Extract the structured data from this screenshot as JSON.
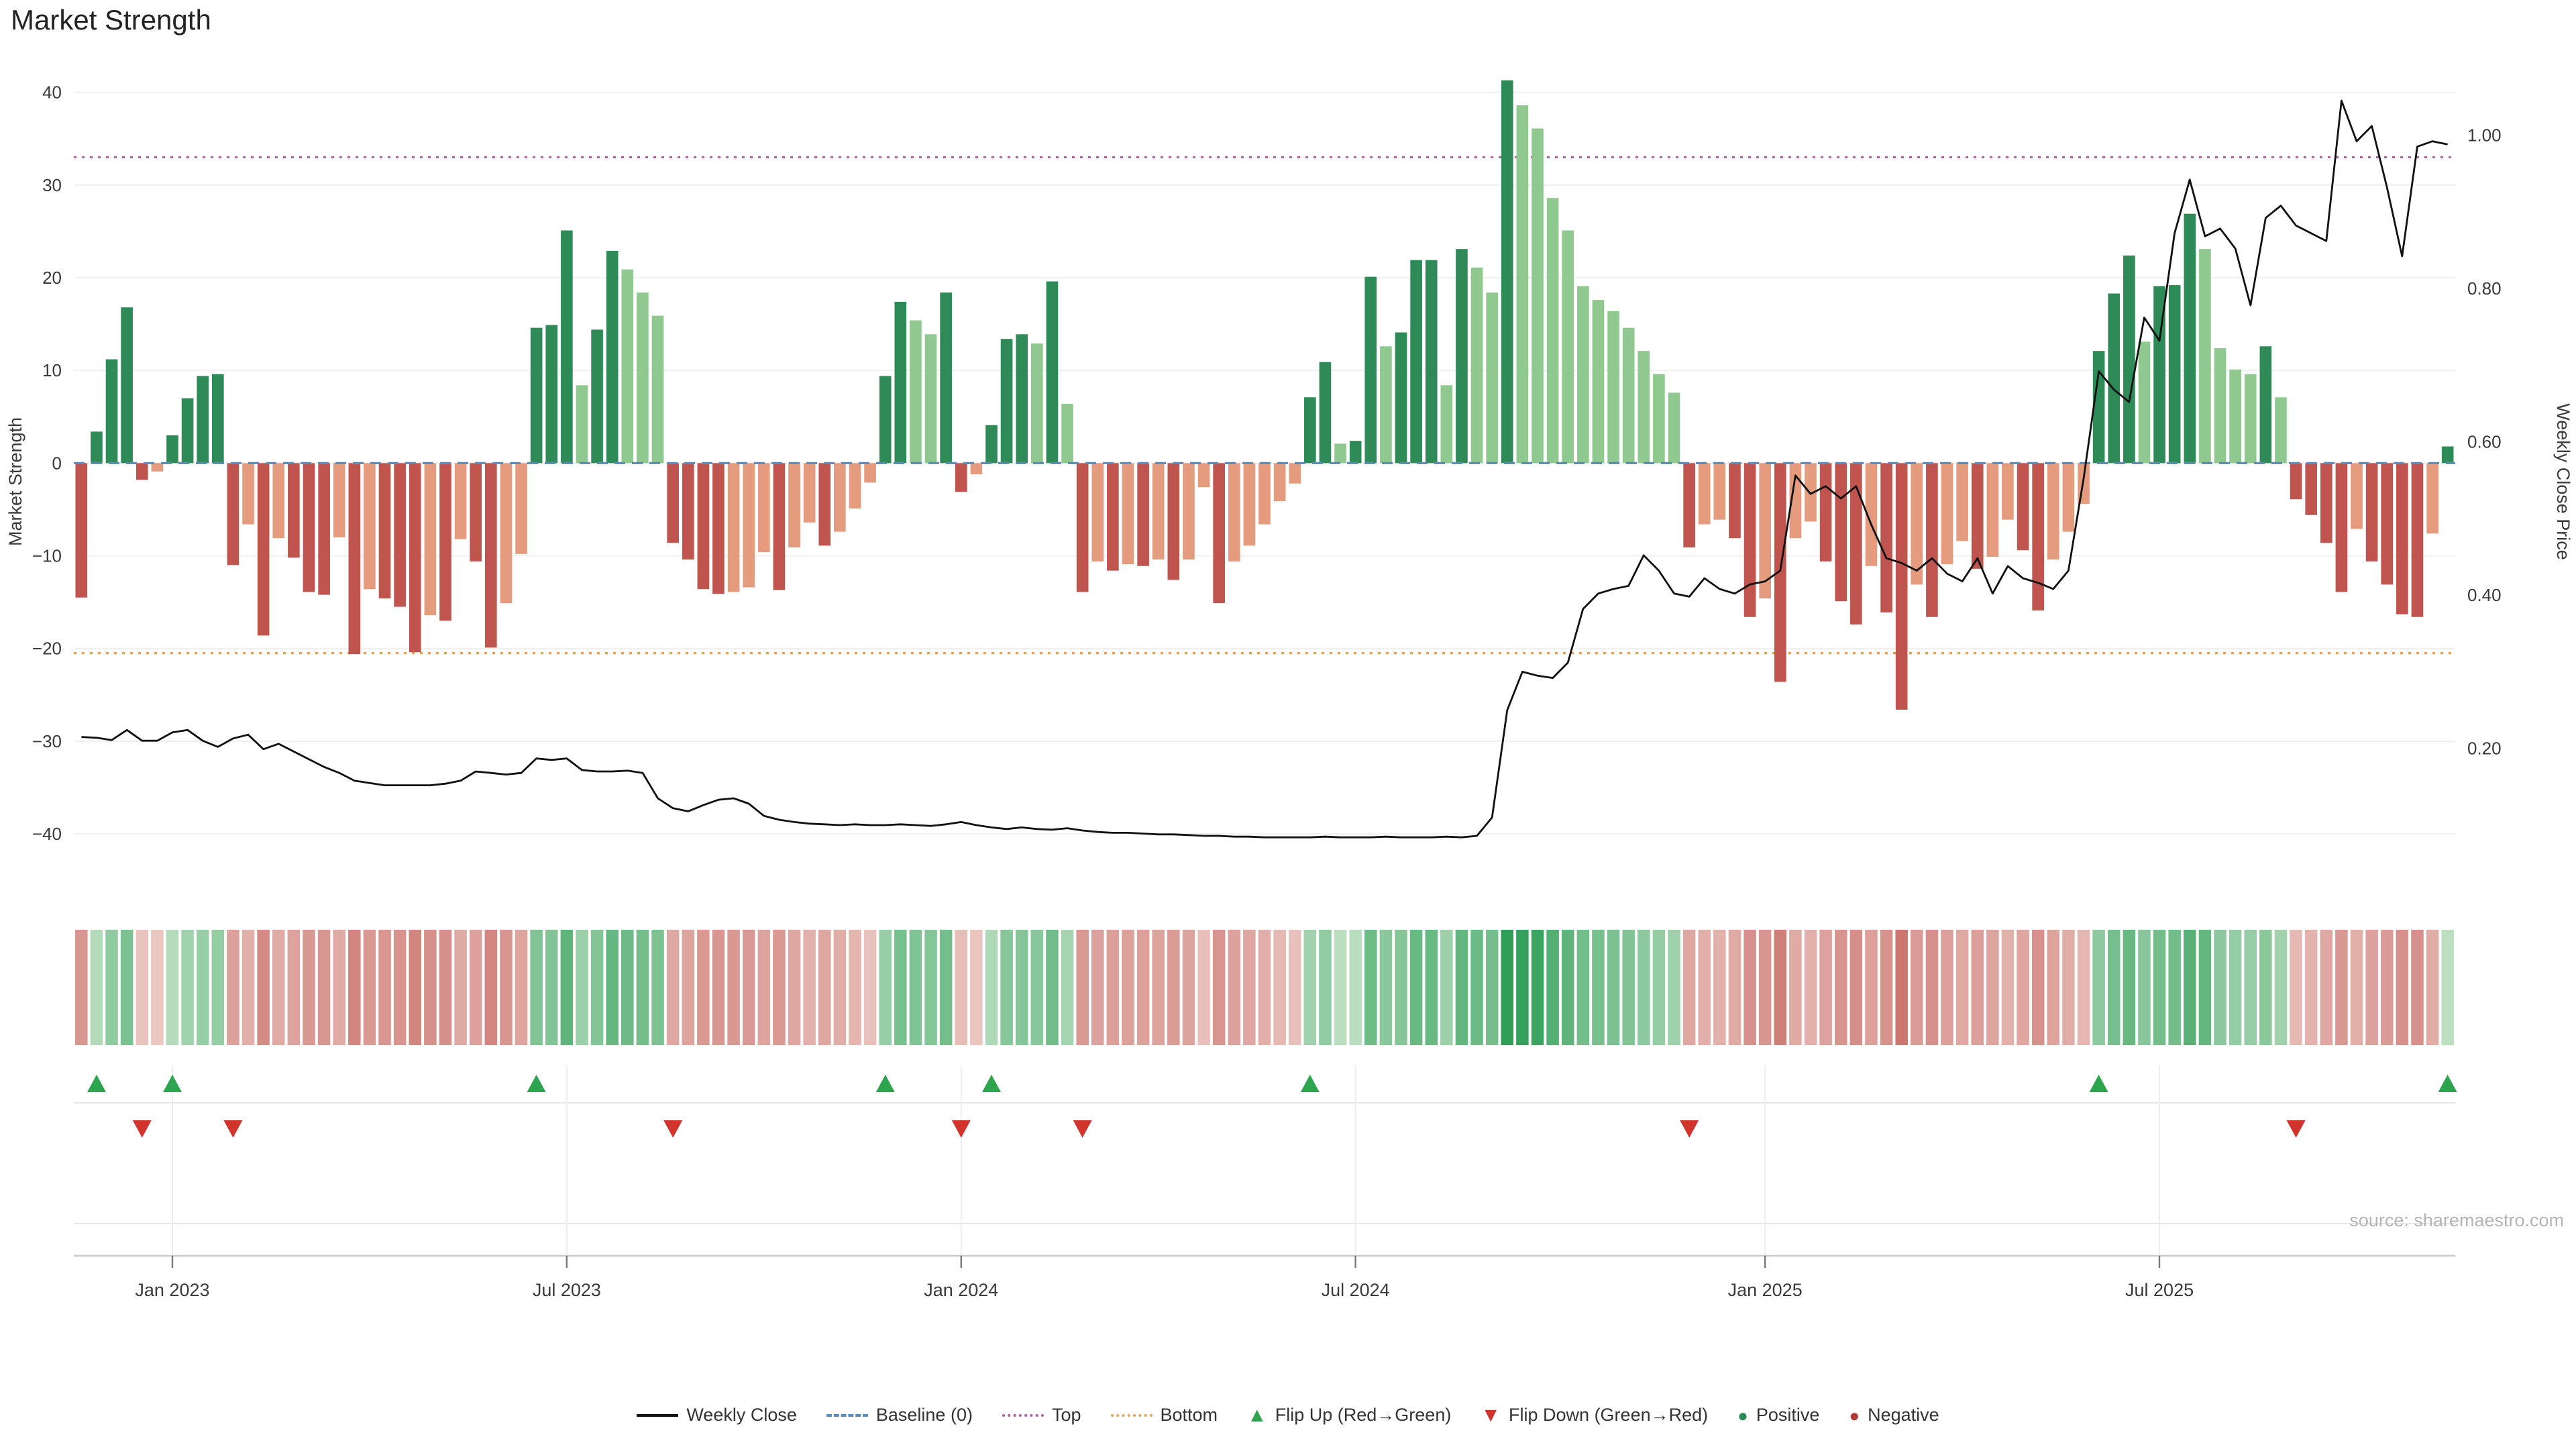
{
  "source_credit": "source: sharemaestro.com",
  "colors": {
    "positive_dark": "#2e8b57",
    "positive_light": "#8fc98f",
    "negative_dark": "#c0544e",
    "negative_light": "#e59b7e",
    "baseline": "#5b8db8",
    "top": "#b35fa3",
    "bottom": "#e8a356",
    "price": "#111111",
    "flip_up": "#2da44e",
    "flip_down": "#d0342c",
    "heat_pos_dark": "#2f9e57",
    "heat_pos_light": "#e6f2e2",
    "heat_neg_dark": "#c0544e",
    "heat_neg_light": "#f6e4df",
    "grid": "#f0f0f0",
    "axis_text": "#3a3a3a"
  },
  "chart_data": {
    "type": "bar+line+heatmap",
    "title": "Market Strength",
    "n_weeks": 157,
    "x_unit": "week_index",
    "axes": {
      "left_label": "Market Strength",
      "right_label": "Weekly Close Price",
      "left_ticks": [
        40,
        30,
        20,
        10,
        0,
        -10,
        -20,
        -30,
        -40
      ],
      "right_ticks": [
        1.0,
        0.8,
        0.6,
        0.4,
        0.2
      ],
      "left_min": -46,
      "left_max": 42,
      "right_min": 0.016,
      "right_max": 1.08,
      "x_tick_labels": [
        "Jan 2023",
        "Jul 2023",
        "Jan 2024",
        "Jul 2024",
        "Jan 2025",
        "Jul 2025"
      ],
      "x_tick_weeks": [
        6,
        32,
        58,
        84,
        111,
        137
      ]
    },
    "reference_lines": {
      "baseline": 0,
      "top": 33,
      "bottom": -20.5
    },
    "series": [
      {
        "name": "Market Strength",
        "type": "bar",
        "axis": "left",
        "values": [
          -14.5,
          3.4,
          11.2,
          16.8,
          -1.8,
          -0.9,
          3.0,
          7.0,
          9.4,
          9.6,
          -11.0,
          -6.6,
          -18.6,
          -8.1,
          -10.2,
          -13.9,
          -14.2,
          -8.0,
          -20.6,
          -13.6,
          -14.6,
          -15.5,
          -20.4,
          -16.4,
          -17.0,
          -8.2,
          -10.6,
          -19.9,
          -15.1,
          -9.8,
          14.6,
          14.9,
          25.1,
          8.4,
          14.4,
          22.9,
          20.9,
          18.4,
          15.9,
          -8.6,
          -10.4,
          -13.6,
          -14.1,
          -13.9,
          -13.4,
          -9.6,
          -13.7,
          -9.1,
          -6.4,
          -8.9,
          -7.4,
          -4.9,
          -2.1,
          9.4,
          17.4,
          15.4,
          13.9,
          18.4,
          -3.1,
          -1.2,
          4.1,
          13.4,
          13.9,
          12.9,
          19.6,
          6.4,
          -13.9,
          -10.6,
          -11.6,
          -10.9,
          -11.1,
          -10.4,
          -12.6,
          -10.4,
          -2.6,
          -15.1,
          -10.6,
          -8.9,
          -6.6,
          -4.1,
          -2.2,
          7.1,
          10.9,
          2.1,
          2.4,
          20.1,
          12.6,
          14.1,
          21.9,
          21.9,
          8.4,
          23.1,
          21.1,
          18.4,
          41.3,
          38.6,
          36.1,
          28.6,
          25.1,
          19.1,
          17.6,
          16.4,
          14.6,
          12.1,
          9.6,
          7.6,
          -9.1,
          -6.6,
          -6.1,
          -8.1,
          -16.6,
          -14.6,
          -23.6,
          -8.1,
          -6.3,
          -10.6,
          -14.9,
          -17.4,
          -11.1,
          -16.1,
          -26.6,
          -13.1,
          -16.6,
          -10.9,
          -8.4,
          -11.4,
          -10.1,
          -6.1,
          -9.4,
          -15.9,
          -10.4,
          -7.4,
          -4.4,
          12.1,
          18.3,
          22.4,
          13.1,
          19.1,
          19.2,
          26.9,
          23.1,
          12.4,
          10.1,
          9.6,
          12.6,
          7.1,
          -3.9,
          -5.6,
          -8.6,
          -13.9,
          -7.1,
          -10.6,
          -13.1,
          -16.3,
          -16.6,
          -7.6,
          1.8
        ]
      },
      {
        "name": "Weekly Close",
        "type": "line",
        "axis": "right",
        "values": [
          0.215,
          0.214,
          0.211,
          0.224,
          0.21,
          0.21,
          0.221,
          0.224,
          0.21,
          0.202,
          0.213,
          0.218,
          0.199,
          0.206,
          0.196,
          0.186,
          0.176,
          0.168,
          0.158,
          0.155,
          0.152,
          0.152,
          0.152,
          0.152,
          0.154,
          0.158,
          0.17,
          0.168,
          0.166,
          0.168,
          0.187,
          0.185,
          0.187,
          0.172,
          0.17,
          0.17,
          0.171,
          0.168,
          0.135,
          0.122,
          0.118,
          0.126,
          0.133,
          0.135,
          0.128,
          0.112,
          0.107,
          0.104,
          0.102,
          0.101,
          0.1,
          0.101,
          0.1,
          0.1,
          0.101,
          0.1,
          0.099,
          0.101,
          0.104,
          0.1,
          0.097,
          0.095,
          0.097,
          0.095,
          0.094,
          0.096,
          0.093,
          0.091,
          0.09,
          0.09,
          0.089,
          0.088,
          0.088,
          0.087,
          0.086,
          0.086,
          0.085,
          0.085,
          0.084,
          0.084,
          0.084,
          0.084,
          0.085,
          0.084,
          0.084,
          0.084,
          0.085,
          0.084,
          0.084,
          0.084,
          0.085,
          0.084,
          0.086,
          0.11,
          0.25,
          0.3,
          0.295,
          0.292,
          0.312,
          0.382,
          0.402,
          0.408,
          0.412,
          0.452,
          0.432,
          0.402,
          0.398,
          0.422,
          0.408,
          0.402,
          0.414,
          0.418,
          0.432,
          0.556,
          0.532,
          0.542,
          0.526,
          0.542,
          0.492,
          0.448,
          0.442,
          0.432,
          0.448,
          0.428,
          0.418,
          0.448,
          0.402,
          0.438,
          0.422,
          0.416,
          0.408,
          0.432,
          0.552,
          0.692,
          0.668,
          0.652,
          0.762,
          0.732,
          0.872,
          0.942,
          0.868,
          0.878,
          0.852,
          0.778,
          0.892,
          0.908,
          0.882,
          0.872,
          0.862,
          1.045,
          0.992,
          1.012,
          0.932,
          0.842,
          0.985,
          0.992,
          0.988
        ]
      }
    ],
    "flip_up_weeks": [
      1,
      6,
      30,
      53,
      60,
      81,
      133,
      156
    ],
    "flip_down_weeks": [
      4,
      10,
      39,
      58,
      66,
      106,
      146
    ],
    "heatmap_strip": "pastel red-green cells derived from Market Strength values",
    "legend": [
      {
        "label": "Weekly Close",
        "marker": "line-solid",
        "color": "#111111"
      },
      {
        "label": "Baseline (0)",
        "marker": "line-dashed",
        "color": "#5b8db8"
      },
      {
        "label": "Top",
        "marker": "line-dotted",
        "color": "#b35fa3"
      },
      {
        "label": "Bottom",
        "marker": "line-dotted",
        "color": "#e8a356"
      },
      {
        "label": "Flip Up (Red→Green)",
        "marker": "triangle-up",
        "color": "#2da44e"
      },
      {
        "label": "Flip Down (Green→Red)",
        "marker": "triangle-down",
        "color": "#d0342c"
      },
      {
        "label": "Positive",
        "marker": "dot",
        "color": "#2e8b57"
      },
      {
        "label": "Negative",
        "marker": "dot",
        "color": "#b03a34"
      }
    ]
  }
}
